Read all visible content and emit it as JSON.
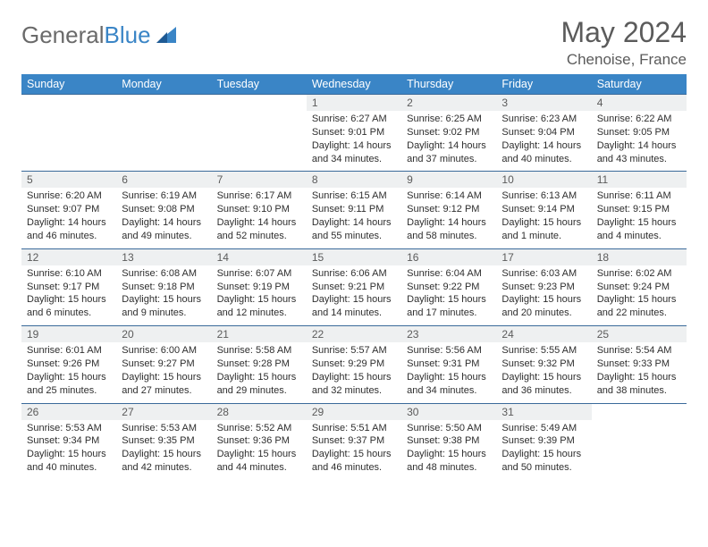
{
  "brand": {
    "word1": "General",
    "word2": "Blue"
  },
  "title": "May 2024",
  "location": "Chenoise, France",
  "colors": {
    "header_bg": "#3a85c6",
    "header_text": "#ffffff",
    "daynum_bg": "#eef0f1",
    "row_divider": "#3a6a9a",
    "text": "#2e2e2e",
    "muted": "#5b5b5b",
    "page_bg": "#ffffff"
  },
  "fonts": {
    "base_family": "Arial",
    "title_size_pt": 24,
    "body_size_pt": 8
  },
  "weekdays": [
    "Sunday",
    "Monday",
    "Tuesday",
    "Wednesday",
    "Thursday",
    "Friday",
    "Saturday"
  ],
  "weeks": [
    [
      null,
      null,
      null,
      {
        "n": "1",
        "sr": "Sunrise: 6:27 AM",
        "ss": "Sunset: 9:01 PM",
        "d1": "Daylight: 14 hours",
        "d2": "and 34 minutes."
      },
      {
        "n": "2",
        "sr": "Sunrise: 6:25 AM",
        "ss": "Sunset: 9:02 PM",
        "d1": "Daylight: 14 hours",
        "d2": "and 37 minutes."
      },
      {
        "n": "3",
        "sr": "Sunrise: 6:23 AM",
        "ss": "Sunset: 9:04 PM",
        "d1": "Daylight: 14 hours",
        "d2": "and 40 minutes."
      },
      {
        "n": "4",
        "sr": "Sunrise: 6:22 AM",
        "ss": "Sunset: 9:05 PM",
        "d1": "Daylight: 14 hours",
        "d2": "and 43 minutes."
      }
    ],
    [
      {
        "n": "5",
        "sr": "Sunrise: 6:20 AM",
        "ss": "Sunset: 9:07 PM",
        "d1": "Daylight: 14 hours",
        "d2": "and 46 minutes."
      },
      {
        "n": "6",
        "sr": "Sunrise: 6:19 AM",
        "ss": "Sunset: 9:08 PM",
        "d1": "Daylight: 14 hours",
        "d2": "and 49 minutes."
      },
      {
        "n": "7",
        "sr": "Sunrise: 6:17 AM",
        "ss": "Sunset: 9:10 PM",
        "d1": "Daylight: 14 hours",
        "d2": "and 52 minutes."
      },
      {
        "n": "8",
        "sr": "Sunrise: 6:15 AM",
        "ss": "Sunset: 9:11 PM",
        "d1": "Daylight: 14 hours",
        "d2": "and 55 minutes."
      },
      {
        "n": "9",
        "sr": "Sunrise: 6:14 AM",
        "ss": "Sunset: 9:12 PM",
        "d1": "Daylight: 14 hours",
        "d2": "and 58 minutes."
      },
      {
        "n": "10",
        "sr": "Sunrise: 6:13 AM",
        "ss": "Sunset: 9:14 PM",
        "d1": "Daylight: 15 hours",
        "d2": "and 1 minute."
      },
      {
        "n": "11",
        "sr": "Sunrise: 6:11 AM",
        "ss": "Sunset: 9:15 PM",
        "d1": "Daylight: 15 hours",
        "d2": "and 4 minutes."
      }
    ],
    [
      {
        "n": "12",
        "sr": "Sunrise: 6:10 AM",
        "ss": "Sunset: 9:17 PM",
        "d1": "Daylight: 15 hours",
        "d2": "and 6 minutes."
      },
      {
        "n": "13",
        "sr": "Sunrise: 6:08 AM",
        "ss": "Sunset: 9:18 PM",
        "d1": "Daylight: 15 hours",
        "d2": "and 9 minutes."
      },
      {
        "n": "14",
        "sr": "Sunrise: 6:07 AM",
        "ss": "Sunset: 9:19 PM",
        "d1": "Daylight: 15 hours",
        "d2": "and 12 minutes."
      },
      {
        "n": "15",
        "sr": "Sunrise: 6:06 AM",
        "ss": "Sunset: 9:21 PM",
        "d1": "Daylight: 15 hours",
        "d2": "and 14 minutes."
      },
      {
        "n": "16",
        "sr": "Sunrise: 6:04 AM",
        "ss": "Sunset: 9:22 PM",
        "d1": "Daylight: 15 hours",
        "d2": "and 17 minutes."
      },
      {
        "n": "17",
        "sr": "Sunrise: 6:03 AM",
        "ss": "Sunset: 9:23 PM",
        "d1": "Daylight: 15 hours",
        "d2": "and 20 minutes."
      },
      {
        "n": "18",
        "sr": "Sunrise: 6:02 AM",
        "ss": "Sunset: 9:24 PM",
        "d1": "Daylight: 15 hours",
        "d2": "and 22 minutes."
      }
    ],
    [
      {
        "n": "19",
        "sr": "Sunrise: 6:01 AM",
        "ss": "Sunset: 9:26 PM",
        "d1": "Daylight: 15 hours",
        "d2": "and 25 minutes."
      },
      {
        "n": "20",
        "sr": "Sunrise: 6:00 AM",
        "ss": "Sunset: 9:27 PM",
        "d1": "Daylight: 15 hours",
        "d2": "and 27 minutes."
      },
      {
        "n": "21",
        "sr": "Sunrise: 5:58 AM",
        "ss": "Sunset: 9:28 PM",
        "d1": "Daylight: 15 hours",
        "d2": "and 29 minutes."
      },
      {
        "n": "22",
        "sr": "Sunrise: 5:57 AM",
        "ss": "Sunset: 9:29 PM",
        "d1": "Daylight: 15 hours",
        "d2": "and 32 minutes."
      },
      {
        "n": "23",
        "sr": "Sunrise: 5:56 AM",
        "ss": "Sunset: 9:31 PM",
        "d1": "Daylight: 15 hours",
        "d2": "and 34 minutes."
      },
      {
        "n": "24",
        "sr": "Sunrise: 5:55 AM",
        "ss": "Sunset: 9:32 PM",
        "d1": "Daylight: 15 hours",
        "d2": "and 36 minutes."
      },
      {
        "n": "25",
        "sr": "Sunrise: 5:54 AM",
        "ss": "Sunset: 9:33 PM",
        "d1": "Daylight: 15 hours",
        "d2": "and 38 minutes."
      }
    ],
    [
      {
        "n": "26",
        "sr": "Sunrise: 5:53 AM",
        "ss": "Sunset: 9:34 PM",
        "d1": "Daylight: 15 hours",
        "d2": "and 40 minutes."
      },
      {
        "n": "27",
        "sr": "Sunrise: 5:53 AM",
        "ss": "Sunset: 9:35 PM",
        "d1": "Daylight: 15 hours",
        "d2": "and 42 minutes."
      },
      {
        "n": "28",
        "sr": "Sunrise: 5:52 AM",
        "ss": "Sunset: 9:36 PM",
        "d1": "Daylight: 15 hours",
        "d2": "and 44 minutes."
      },
      {
        "n": "29",
        "sr": "Sunrise: 5:51 AM",
        "ss": "Sunset: 9:37 PM",
        "d1": "Daylight: 15 hours",
        "d2": "and 46 minutes."
      },
      {
        "n": "30",
        "sr": "Sunrise: 5:50 AM",
        "ss": "Sunset: 9:38 PM",
        "d1": "Daylight: 15 hours",
        "d2": "and 48 minutes."
      },
      {
        "n": "31",
        "sr": "Sunrise: 5:49 AM",
        "ss": "Sunset: 9:39 PM",
        "d1": "Daylight: 15 hours",
        "d2": "and 50 minutes."
      },
      null
    ]
  ]
}
